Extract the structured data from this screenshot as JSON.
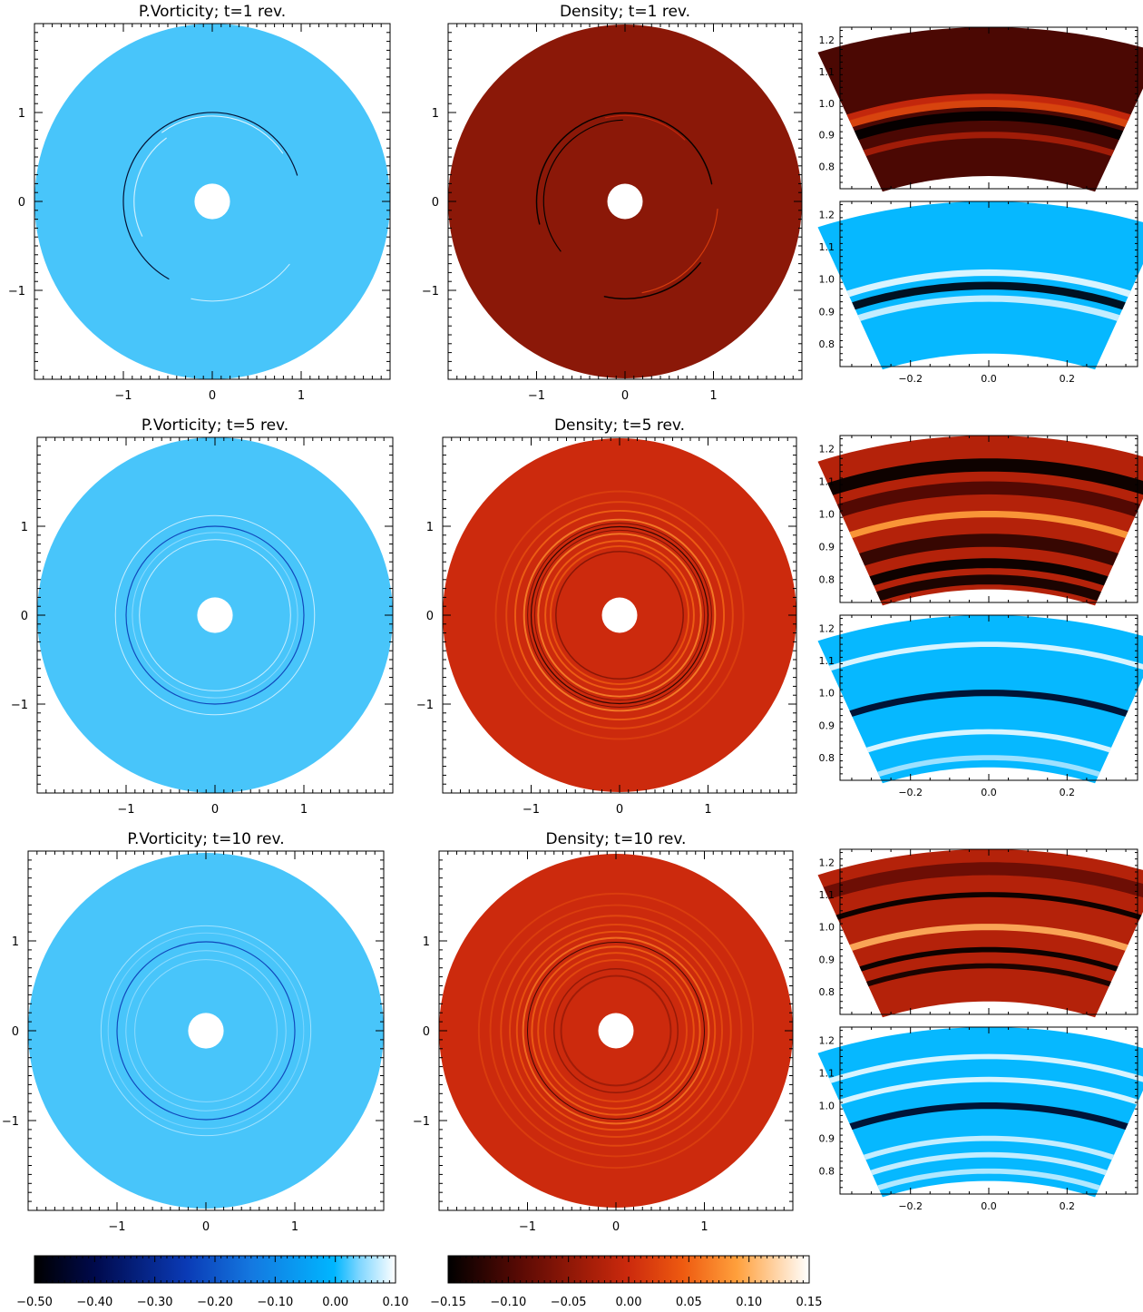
{
  "chart_data": [
    {
      "type": "heatmap",
      "row": 0,
      "col": 0,
      "quantity": "vorticity",
      "title": "P.Vorticity;  t=1 rev.",
      "rings": [
        {
          "r": 1.0,
          "d": -0.45,
          "w": 0.012,
          "arc": [
            0.3,
            4.2
          ]
        },
        {
          "r": 0.96,
          "d": 0.09,
          "w": 0.01,
          "arc": [
            0.6,
            2.2
          ]
        },
        {
          "r": 0.88,
          "d": 0.08,
          "w": 0.012,
          "arc": [
            2.2,
            3.6
          ]
        },
        {
          "r": 1.12,
          "d": 0.08,
          "w": 0.01,
          "arc": [
            4.5,
            5.6
          ]
        }
      ]
    },
    {
      "type": "heatmap",
      "row": 0,
      "col": 1,
      "quantity": "density",
      "title": "Density;  t=1 rev.",
      "rings": [
        {
          "r": 1.0,
          "d": -0.14,
          "w": 0.015,
          "arc": [
            0.2,
            3.4
          ]
        },
        {
          "r": 1.05,
          "d": 0.12,
          "w": 0.012,
          "arc": [
            4.9,
            6.2
          ]
        },
        {
          "r": 0.92,
          "d": -0.12,
          "w": 0.012,
          "arc": [
            1.6,
            3.8
          ]
        },
        {
          "r": 1.1,
          "d": -0.1,
          "w": 0.015,
          "arc": [
            4.5,
            5.6
          ]
        },
        {
          "r": 0.97,
          "d": 0.1,
          "w": 0.01,
          "arc": [
            0.8,
            1.8
          ]
        }
      ]
    },
    {
      "type": "heatmap",
      "row": 1,
      "col": 0,
      "quantity": "vorticity",
      "title": "P.Vorticity;  t=5 rev.",
      "rings": [
        {
          "r": 1.0,
          "d": -0.25,
          "w": 0.012
        },
        {
          "r": 1.12,
          "d": 0.08,
          "w": 0.01
        },
        {
          "r": 0.85,
          "d": 0.08,
          "w": 0.01
        },
        {
          "r": 0.93,
          "d": 0.05,
          "w": 0.01
        }
      ]
    },
    {
      "type": "heatmap",
      "row": 1,
      "col": 1,
      "quantity": "density",
      "title": "Density;  t=5 rev.",
      "rings": [
        {
          "r": 1.0,
          "d": -0.13,
          "w": 0.012
        },
        {
          "r": 1.08,
          "d": 0.07,
          "w": 0.02
        },
        {
          "r": 0.92,
          "d": 0.07,
          "w": 0.02
        },
        {
          "r": 1.18,
          "d": 0.05,
          "w": 0.02
        },
        {
          "r": 0.84,
          "d": 0.05,
          "w": 0.02
        },
        {
          "r": 0.78,
          "d": 0.04,
          "w": 0.02
        },
        {
          "r": 1.28,
          "d": 0.03,
          "w": 0.02
        },
        {
          "r": 0.72,
          "d": -0.06,
          "w": 0.015
        },
        {
          "r": 1.4,
          "d": 0.02,
          "w": 0.02
        },
        {
          "r": 1.04,
          "d": -0.08,
          "w": 0.01
        },
        {
          "r": 0.96,
          "d": -0.07,
          "w": 0.01
        }
      ]
    },
    {
      "type": "heatmap",
      "row": 2,
      "col": 0,
      "quantity": "vorticity",
      "title": "P.Vorticity;  t=10 rev.",
      "rings": [
        {
          "r": 1.0,
          "d": -0.25,
          "w": 0.012
        },
        {
          "r": 1.18,
          "d": 0.06,
          "w": 0.01
        },
        {
          "r": 0.9,
          "d": 0.05,
          "w": 0.01
        },
        {
          "r": 0.8,
          "d": 0.05,
          "w": 0.01
        },
        {
          "r": 1.1,
          "d": 0.04,
          "w": 0.01
        }
      ]
    },
    {
      "type": "heatmap",
      "row": 2,
      "col": 1,
      "quantity": "density",
      "title": "Density;  t=10 rev.",
      "rings": [
        {
          "r": 1.0,
          "d": -0.12,
          "w": 0.01
        },
        {
          "r": 1.05,
          "d": 0.06,
          "w": 0.02
        },
        {
          "r": 0.95,
          "d": 0.05,
          "w": 0.02
        },
        {
          "r": 1.12,
          "d": 0.04,
          "w": 0.02
        },
        {
          "r": 0.88,
          "d": 0.04,
          "w": 0.02
        },
        {
          "r": 1.2,
          "d": 0.03,
          "w": 0.02
        },
        {
          "r": 0.8,
          "d": 0.03,
          "w": 0.02
        },
        {
          "r": 1.3,
          "d": 0.03,
          "w": 0.02
        },
        {
          "r": 0.7,
          "d": -0.05,
          "w": 0.015
        },
        {
          "r": 1.42,
          "d": 0.02,
          "w": 0.02
        },
        {
          "r": 1.55,
          "d": 0.02,
          "w": 0.02
        },
        {
          "r": 0.62,
          "d": -0.04,
          "w": 0.02
        }
      ]
    }
  ],
  "zoom_panels": [
    {
      "row": 0,
      "part": "top",
      "quantity": "density",
      "bands": [
        {
          "r": 1.0,
          "d": 0.13,
          "w": 0.012
        },
        {
          "r": 0.96,
          "d": -0.14,
          "w": 0.015
        },
        {
          "r": 1.02,
          "d": 0.1,
          "w": 0.01
        },
        {
          "r": 0.9,
          "d": 0.07,
          "w": 0.01
        }
      ]
    },
    {
      "row": 0,
      "part": "bottom",
      "quantity": "vorticity",
      "bands": [
        {
          "r": 0.98,
          "d": -0.48,
          "w": 0.012
        },
        {
          "r": 1.02,
          "d": 0.09,
          "w": 0.01
        },
        {
          "r": 0.94,
          "d": 0.08,
          "w": 0.01
        }
      ]
    },
    {
      "row": 1,
      "part": "top",
      "quantity": "density",
      "bands": [
        {
          "r": 1.15,
          "d": -0.14,
          "w": 0.02
        },
        {
          "r": 1.0,
          "d": 0.11,
          "w": 0.01
        },
        {
          "r": 0.85,
          "d": -0.14,
          "w": 0.015
        },
        {
          "r": 0.8,
          "d": -0.12,
          "w": 0.015
        },
        {
          "r": 1.08,
          "d": -0.08,
          "w": 0.02
        },
        {
          "r": 0.92,
          "d": -0.1,
          "w": 0.02
        }
      ]
    },
    {
      "row": 1,
      "part": "bottom",
      "quantity": "vorticity",
      "bands": [
        {
          "r": 1.0,
          "d": -0.45,
          "w": 0.01
        },
        {
          "r": 1.15,
          "d": 0.09,
          "w": 0.008
        },
        {
          "r": 0.88,
          "d": 0.09,
          "w": 0.008
        },
        {
          "r": 0.8,
          "d": 0.06,
          "w": 0.008
        }
      ]
    },
    {
      "row": 2,
      "part": "top",
      "quantity": "density",
      "bands": [
        {
          "r": 1.0,
          "d": 0.12,
          "w": 0.01
        },
        {
          "r": 1.1,
          "d": -0.14,
          "w": 0.008
        },
        {
          "r": 0.93,
          "d": -0.14,
          "w": 0.008
        },
        {
          "r": 0.88,
          "d": -0.12,
          "w": 0.008
        },
        {
          "r": 1.18,
          "d": -0.06,
          "w": 0.02
        }
      ]
    },
    {
      "row": 2,
      "part": "bottom",
      "quantity": "vorticity",
      "bands": [
        {
          "r": 1.0,
          "d": -0.45,
          "w": 0.01
        },
        {
          "r": 1.15,
          "d": 0.09,
          "w": 0.008
        },
        {
          "r": 1.08,
          "d": 0.09,
          "w": 0.008
        },
        {
          "r": 0.9,
          "d": 0.08,
          "w": 0.008
        },
        {
          "r": 0.85,
          "d": 0.08,
          "w": 0.008
        },
        {
          "r": 0.8,
          "d": 0.07,
          "w": 0.008
        }
      ]
    }
  ],
  "axes": {
    "disk_range": [
      -2,
      2
    ],
    "disk_ticks": [
      -1,
      0,
      1
    ],
    "disk_tick_labels": [
      "−1",
      "0",
      "1"
    ],
    "zoom_x_range": [
      -0.38,
      0.38
    ],
    "zoom_y_range": [
      0.73,
      1.24
    ],
    "zoom_x_ticks": [
      -0.2,
      0.0,
      0.2
    ],
    "zoom_x_tick_labels": [
      "−0.2",
      "0.0",
      "0.2"
    ],
    "zoom_y_ticks": [
      0.8,
      0.9,
      1.0,
      1.1,
      1.2
    ],
    "zoom_y_tick_labels": [
      "0.8",
      "0.9",
      "1.0",
      "1.1",
      "1.2"
    ]
  },
  "colorbars": [
    {
      "quantity": "vorticity",
      "range": [
        -0.5,
        0.1
      ],
      "ticks": [
        "−0.50",
        "−0.40",
        "−0.30",
        "−0.20",
        "−0.10",
        "0.00",
        "0.10"
      ],
      "tick_values": [
        -0.5,
        -0.4,
        -0.3,
        -0.2,
        -0.1,
        0.0,
        0.1
      ]
    },
    {
      "quantity": "density",
      "range": [
        -0.15,
        0.15
      ],
      "ticks": [
        "−0.15",
        "−0.10",
        "−0.05",
        "0.00",
        "0.05",
        "0.10",
        "0.15"
      ],
      "tick_values": [
        -0.15,
        -0.1,
        -0.05,
        0.0,
        0.05,
        0.1,
        0.15
      ]
    }
  ],
  "disk": {
    "inner_radius": 0.2,
    "outer_radius": 2.0
  },
  "colors": {
    "vorticity_background": "#48c5fa",
    "density_background_t1": "#8b1808",
    "density_background": "#cc2a0d"
  }
}
